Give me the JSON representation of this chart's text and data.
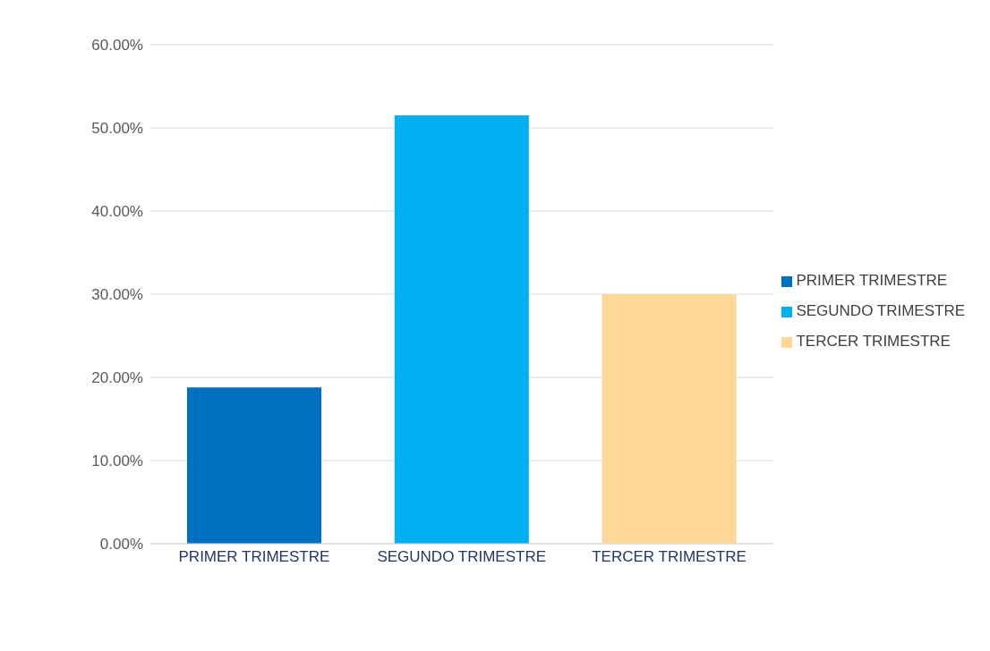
{
  "chart_data": {
    "type": "bar",
    "stacked": true,
    "categories": [
      "PRIMER TRIMESTRE",
      "SEGUNDO TRIMESTRE",
      "TERCER TRIMESTRE"
    ],
    "series": [
      {
        "name": "PRIMER TRIMESTRE",
        "color": "#0070c0",
        "values": [
          18.8,
          null,
          null
        ]
      },
      {
        "name": "SEGUNDO TRIMESTRE",
        "color": "#00b0f0",
        "values": [
          null,
          51.5,
          null
        ]
      },
      {
        "name": "TERCER TRIMESTRE",
        "color": "#ffd898",
        "values": [
          null,
          null,
          30.0
        ]
      }
    ],
    "ylim": [
      0,
      60
    ],
    "yticks": [
      {
        "value": 0,
        "label": "0.00%"
      },
      {
        "value": 10,
        "label": "10.00%"
      },
      {
        "value": 20,
        "label": "20.00%"
      },
      {
        "value": 30,
        "label": "30.00%"
      },
      {
        "value": 40,
        "label": "40.00%"
      },
      {
        "value": 50,
        "label": "50.00%"
      },
      {
        "value": 60,
        "label": "60.00%"
      }
    ],
    "grid": "y",
    "legend": "right"
  }
}
